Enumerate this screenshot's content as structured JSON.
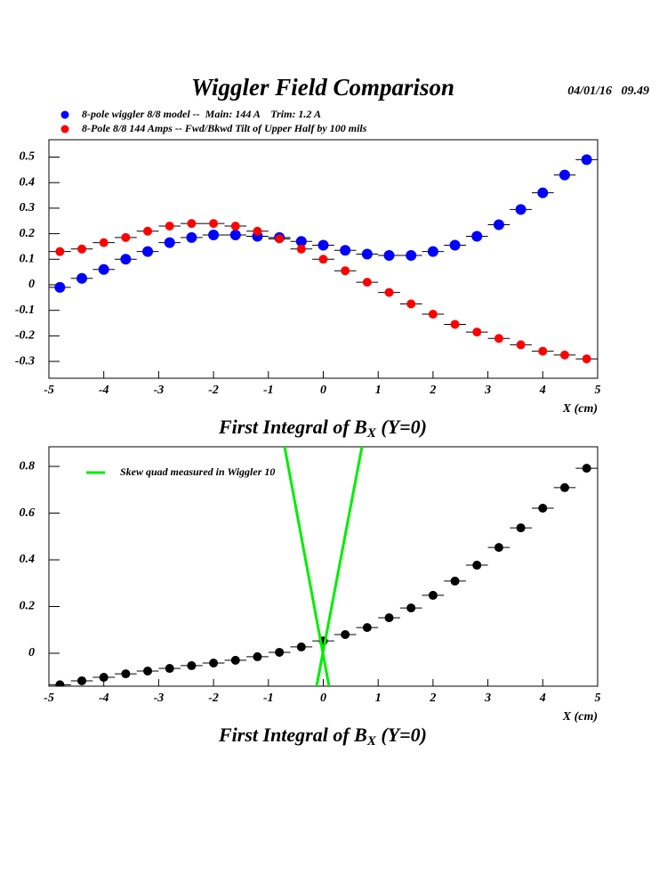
{
  "chart_data": [
    {
      "type": "scatter",
      "title": "Wiggler Field Comparison",
      "date": "04/01/16   09.49",
      "x": [
        -4.8,
        -4.4,
        -4.0,
        -3.6,
        -3.2,
        -2.8,
        -2.4,
        -2.0,
        -1.6,
        -1.2,
        -0.8,
        -0.4,
        0,
        0.4,
        0.8,
        1.2,
        1.6,
        2.0,
        2.4,
        2.8,
        3.2,
        3.6,
        4.0,
        4.4,
        4.8
      ],
      "series": [
        {
          "name": "8-pole wiggler 8/8 model --  Main: 144 A    Trim: 1.2 A",
          "color": "#0000ff",
          "values": [
            -0.01,
            0.025,
            0.06,
            0.1,
            0.13,
            0.165,
            0.185,
            0.195,
            0.195,
            0.19,
            0.185,
            0.17,
            0.155,
            0.135,
            0.12,
            0.115,
            0.115,
            0.13,
            0.155,
            0.19,
            0.235,
            0.295,
            0.36,
            0.43,
            0.49
          ]
        },
        {
          "name": "8-Pole 8/8 144 Amps -- Fwd/Bkwd Tilt of Upper Half by 100 mils",
          "color": "#ff0000",
          "values": [
            0.13,
            0.14,
            0.165,
            0.185,
            0.21,
            0.23,
            0.24,
            0.24,
            0.23,
            0.21,
            0.18,
            0.14,
            0.1,
            0.055,
            0.01,
            -0.03,
            -0.075,
            -0.115,
            -0.155,
            -0.185,
            -0.21,
            -0.235,
            -0.26,
            -0.275,
            -0.29
          ]
        }
      ],
      "xlim": [
        -5,
        5
      ],
      "ylim": [
        -0.366,
        0.568
      ],
      "xticks": [
        -5,
        -4,
        -3,
        -2,
        -1,
        0,
        1,
        2,
        3,
        4,
        5
      ],
      "yticks": [
        -0.3,
        -0.2,
        -0.1,
        0,
        0.1,
        0.2,
        0.3,
        0.4,
        0.5
      ],
      "xlabel": "X (cm)",
      "caption": [
        "First Integral of B",
        "X",
        " (Y=0)"
      ]
    },
    {
      "type": "scatter",
      "x": [
        -4.8,
        -4.4,
        -4.0,
        -3.6,
        -3.2,
        -2.8,
        -2.4,
        -2.0,
        -1.6,
        -1.2,
        -0.8,
        -0.4,
        0,
        0.4,
        0.8,
        1.2,
        1.6,
        2.0,
        2.4,
        2.8,
        3.2,
        3.6,
        4.0,
        4.4,
        4.8
      ],
      "series": [
        {
          "color": "#000000",
          "values": [
            -0.135,
            -0.118,
            -0.103,
            -0.088,
            -0.076,
            -0.065,
            -0.053,
            -0.042,
            -0.03,
            -0.015,
            0.004,
            0.027,
            0.053,
            0.08,
            0.11,
            0.152,
            0.194,
            0.248,
            0.309,
            0.377,
            0.453,
            0.537,
            0.621,
            0.709,
            0.792
          ]
        },
        {
          "name": "Skew quad measured in Wiggler 10",
          "color": "#00ee00",
          "style": "line",
          "x": [
            -0.705,
            0.105,
            null,
            0.705,
            -0.122
          ],
          "values": [
            0.884,
            -0.141,
            null,
            0.884,
            -0.141
          ]
        }
      ],
      "xlim": [
        -5,
        5
      ],
      "ylim": [
        -0.141,
        0.884
      ],
      "xticks": [
        -5,
        -4,
        -3,
        -2,
        -1,
        0,
        1,
        2,
        3,
        4,
        5
      ],
      "yticks": [
        0,
        0.2,
        0.4,
        0.6,
        0.8
      ],
      "xlabel": "X (cm)",
      "caption": [
        "First Integral of B",
        "X",
        " (Y=0)"
      ]
    }
  ]
}
